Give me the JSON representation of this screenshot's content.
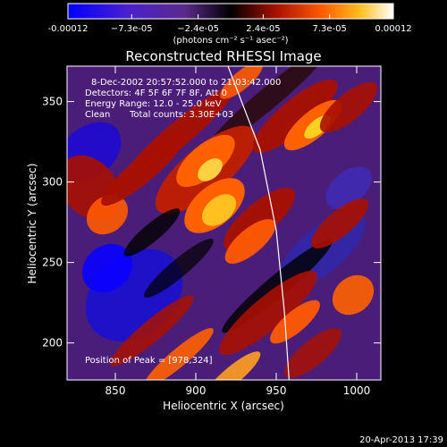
{
  "chart_data": {
    "type": "heatmap",
    "title": "Reconstructed RHESSI Image",
    "xlabel": "Heliocentric X (arcsec)",
    "ylabel": "Heliocentric Y (arcsec)",
    "xlim": [
      820,
      1015
    ],
    "ylim": [
      177,
      372
    ],
    "x_ticks": [
      850,
      900,
      950,
      1000
    ],
    "y_ticks": [
      200,
      250,
      300,
      350
    ],
    "colorbar": {
      "range": [
        -0.00012,
        0.00012
      ],
      "tick_values": [
        -0.00012,
        -7.3e-05,
        -2.4e-05,
        2.4e-05,
        7.3e-05,
        0.00012
      ],
      "tick_labels": [
        "-0.00012",
        "−7.3e-05",
        "−2.4e-05",
        "2.4e-05",
        "7.3e-05",
        "0.00012"
      ],
      "unit_label": "(photons cm⁻² s⁻¹ asec⁻²)",
      "stops": [
        "#0000ff",
        "#7030a8",
        "#000000",
        "#a81000",
        "#ff6000",
        "#ffd020",
        "#ffffff"
      ]
    },
    "annotations": {
      "date": "8-Dec-2002 20:57:52.000 to 21:03:42.000",
      "detectors": "Detectors: 4F 5F 6F 7F 8F, Att 0",
      "energy": "Energy Range: 12.0 - 25.0 keV",
      "clean": "Clean",
      "counts": "Total counts: 3.30E+03",
      "peak": "Position of Peak = [978,324]"
    },
    "peak": {
      "x": 978,
      "y": 324
    },
    "limb_points": [
      [
        920,
        372
      ],
      [
        940,
        320
      ],
      [
        950,
        270
      ],
      [
        955,
        220
      ],
      [
        958,
        177
      ]
    ]
  },
  "footer": {
    "timestamp": "20-Apr-2013 17:39"
  }
}
